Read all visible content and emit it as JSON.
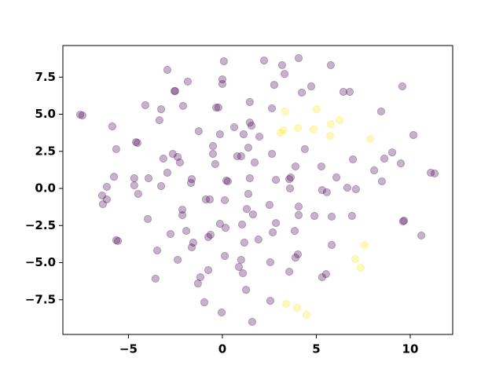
{
  "chart_data": {
    "type": "scatter",
    "xlim": [
      -8.49,
      12.26
    ],
    "ylim": [
      -9.84,
      9.63
    ],
    "xticks": [
      {
        "value": -5,
        "label": "−5"
      },
      0,
      5,
      10
    ],
    "yticks": [
      {
        "value": -7.5,
        "label": "−7.5"
      },
      {
        "value": -5,
        "label": "−5.0"
      },
      {
        "value": -2.5,
        "label": "−2.5"
      },
      {
        "value": 0,
        "label": "0.0"
      },
      2.5,
      {
        "value": 5,
        "label": "5.0"
      },
      7.5
    ],
    "opacity": 0.3,
    "series": [
      {
        "color": "#440154",
        "x": [
          0.08,
          2.22,
          3.18,
          4.06,
          5.77,
          -2.93,
          -1.84,
          3.31,
          0,
          0,
          2.76,
          4.73,
          4.23,
          6.44,
          6.78,
          9.58,
          -2.55,
          -2.51,
          -4.1,
          -3.26,
          -2.09,
          -0.33,
          -0.21,
          1.46,
          2.64,
          8.45,
          -7.57,
          -7.45,
          -3.35,
          -5.86,
          1.46,
          1.55,
          0.63,
          -1.26,
          -0.13,
          1.13,
          1.97,
          -4.6,
          -4.52,
          10.17,
          -5.65,
          -0.5,
          1.38,
          4.39,
          2.64,
          -2.64,
          -2.38,
          -3.14,
          -0.5,
          0.79,
          1.0,
          -2.26,
          -0.38,
          1.72,
          3.89,
          5.27,
          6.95,
          8.08,
          9.04,
          8.62,
          9.5,
          11.09,
          11.3,
          -2.93,
          -5.77,
          -3.93,
          -1.63,
          -1.67,
          -3.26,
          -4.69,
          -4.69,
          -6.15,
          0.21,
          0.29,
          1.46,
          2.85,
          3.64,
          3.6,
          3.56,
          6.07,
          8.49,
          5.31,
          6.65,
          7.11,
          5.56,
          -6.4,
          -4.48,
          -6.15,
          1.38,
          -6.36,
          -0.88,
          -0.67,
          0.13,
          2.51,
          4.06,
          -2.13,
          1.3,
          1.63,
          4.06,
          4.9,
          5.82,
          6.9,
          -2.13,
          -3.97,
          9.67,
          9.62,
          -0.13,
          0.17,
          2.85,
          1.05,
          -1.92,
          -2.76,
          3.85,
          2.68,
          -0.63,
          -0.75,
          10.59,
          -5.65,
          -5.56,
          1.92,
          1.17,
          -1.55,
          -1.63,
          -3.47,
          4.02,
          3.89,
          5.82,
          0.13,
          -2.38,
          1.0,
          2.55,
          0.88,
          -0.75,
          1.09,
          3.56,
          5.52,
          5.31,
          -3.56,
          -1.17,
          -1.3,
          1.26,
          -0.96,
          2.55,
          -0.04,
          1.59
        ],
        "values": [
          8.57,
          8.62,
          8.31,
          8.78,
          8.31,
          7.99,
          7.2,
          7.72,
          7.35,
          7.04,
          6.98,
          6.88,
          6.46,
          6.51,
          6.51,
          6.88,
          6.56,
          6.56,
          5.61,
          5.34,
          5.56,
          5.45,
          5.45,
          5.82,
          5.4,
          5.19,
          4.97,
          4.92,
          4.6,
          4.18,
          4.44,
          4.23,
          4.13,
          3.86,
          3.65,
          3.65,
          3.49,
          3.12,
          3.07,
          3.6,
          2.65,
          2.86,
          2.75,
          2.65,
          2.33,
          2.33,
          2.12,
          2.01,
          2.33,
          2.17,
          2.17,
          1.75,
          1.64,
          1.75,
          1.48,
          1.48,
          1.96,
          1.22,
          2.43,
          2.01,
          1.69,
          1.06,
          1.01,
          1.06,
          0.79,
          0.69,
          0.63,
          0.37,
          0.16,
          0.69,
          0.21,
          0.11,
          0.53,
          0.48,
          0.69,
          0.58,
          0.74,
          0,
          0.63,
          0.74,
          0.48,
          -0.11,
          0.05,
          -0.05,
          -0.26,
          -0.48,
          -0.37,
          -0.74,
          -0.37,
          -1.06,
          -0.74,
          -0.74,
          -0.79,
          -1.11,
          -1.22,
          -1.43,
          -1.38,
          -1.75,
          -1.8,
          -1.85,
          -1.9,
          -1.85,
          -1.8,
          -2.06,
          -2.17,
          -2.22,
          -2.38,
          -2.65,
          -2.33,
          -2.43,
          -2.86,
          -3.07,
          -2.86,
          -2.96,
          -3.12,
          -3.28,
          -3.17,
          -3.49,
          -3.54,
          -3.44,
          -3.65,
          -3.65,
          -3.97,
          -4.18,
          -4.44,
          -4.66,
          -3.81,
          -4.55,
          -4.81,
          -4.81,
          -4.97,
          -5.29,
          -5.5,
          -5.71,
          -5.61,
          -5.77,
          -5.98,
          -6.08,
          -5.98,
          -6.4,
          -6.83,
          -7.67,
          -7.57,
          -8.36,
          -8.99
        ]
      },
      {
        "color": "#fde725",
        "x": [
          3.35,
          5.02,
          3.26,
          4.02,
          3.1,
          4.85,
          5.77,
          6.23,
          5.73,
          7.87,
          7.57,
          7.07,
          7.36,
          3.39,
          3.97,
          4.48
        ],
        "values": [
          5.19,
          5.34,
          3.92,
          4.07,
          3.76,
          3.97,
          4.34,
          4.6,
          3.54,
          3.33,
          -3.81,
          -4.76,
          -5.34,
          -7.78,
          -8.04,
          -8.52
        ]
      }
    ]
  }
}
